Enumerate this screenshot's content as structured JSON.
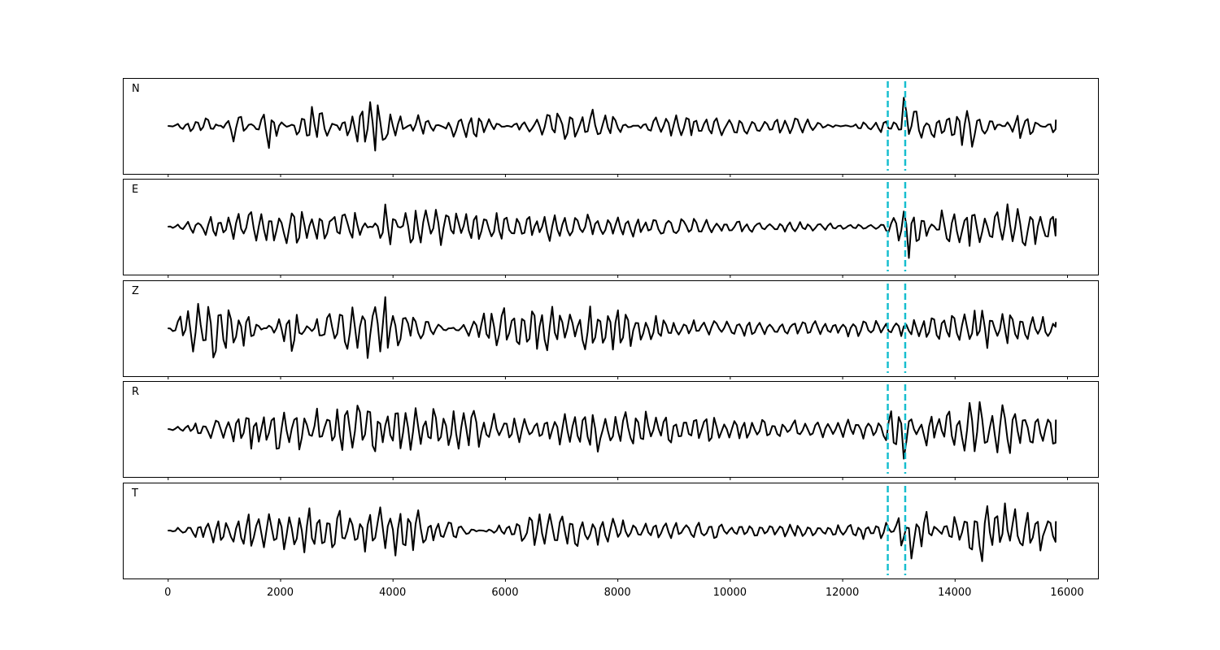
{
  "chart_data": {
    "type": "line",
    "title": "",
    "xlabel": "",
    "ylabel": "",
    "xlim": [
      -800,
      16550
    ],
    "x_ticks": [
      0,
      2000,
      4000,
      6000,
      8000,
      10000,
      12000,
      14000,
      16000
    ],
    "x_tick_labels": [
      "0",
      "2000",
      "4000",
      "6000",
      "8000",
      "10000",
      "12000",
      "14000",
      "16000"
    ],
    "shared_x": true,
    "y_ticks_visible": false,
    "grid": false,
    "marker_lines": {
      "style": "dashed",
      "color": "#17becf",
      "x": [
        12810,
        13120
      ]
    },
    "trace_color": "#000000",
    "x_range": [
      0,
      15800
    ],
    "panels": [
      {
        "label": "N",
        "ylim": [
          -1.15,
          1.15
        ],
        "anchors": [
          [
            0,
            0
          ],
          [
            700,
            0.3
          ],
          [
            1250,
            -0.5
          ],
          [
            1800,
            0.55
          ],
          [
            2600,
            -0.7
          ],
          [
            3350,
            0.65
          ],
          [
            3900,
            0.75
          ],
          [
            4500,
            -0.45
          ],
          [
            5300,
            0.55
          ],
          [
            6300,
            -0.2
          ],
          [
            7500,
            -0.5
          ],
          [
            8800,
            0.3
          ],
          [
            11300,
            0.2
          ],
          [
            12900,
            -0.25
          ],
          [
            13150,
            1.0
          ],
          [
            13300,
            -0.9
          ],
          [
            13600,
            0.3
          ],
          [
            14300,
            0.6
          ],
          [
            15200,
            -0.4
          ],
          [
            15800,
            0.3
          ]
        ]
      },
      {
        "label": "E",
        "ylim": [
          -1.15,
          1.15
        ],
        "anchors": [
          [
            0,
            0
          ],
          [
            900,
            0.35
          ],
          [
            1700,
            0.45
          ],
          [
            2400,
            0.55
          ],
          [
            3400,
            0.4
          ],
          [
            3950,
            -0.7
          ],
          [
            4300,
            0.65
          ],
          [
            5700,
            0.35
          ],
          [
            7200,
            0.35
          ],
          [
            9200,
            0.2
          ],
          [
            12700,
            0.05
          ],
          [
            13200,
            0.95
          ],
          [
            13300,
            -0.85
          ],
          [
            13800,
            0.5
          ],
          [
            15200,
            0.6
          ],
          [
            15800,
            0.4
          ]
        ]
      },
      {
        "label": "Z",
        "ylim": [
          -1.15,
          1.15
        ],
        "anchors": [
          [
            0,
            0
          ],
          [
            500,
            0.75
          ],
          [
            900,
            1.0
          ],
          [
            1300,
            0.5
          ],
          [
            2200,
            -0.6
          ],
          [
            2800,
            0.55
          ],
          [
            3900,
            0.95
          ],
          [
            4000,
            -0.75
          ],
          [
            5800,
            0.55
          ],
          [
            8000,
            0.55
          ],
          [
            9000,
            0.2
          ],
          [
            12000,
            0.2
          ],
          [
            13300,
            0.25
          ],
          [
            14400,
            0.55
          ],
          [
            15800,
            0.3
          ]
        ]
      },
      {
        "label": "R",
        "ylim": [
          -1.15,
          1.15
        ],
        "anchors": [
          [
            0,
            0
          ],
          [
            900,
            0.3
          ],
          [
            1800,
            0.6
          ],
          [
            2700,
            0.5
          ],
          [
            3900,
            0.7
          ],
          [
            5300,
            0.5
          ],
          [
            6600,
            0.3
          ],
          [
            7500,
            0.6
          ],
          [
            9300,
            0.35
          ],
          [
            11700,
            0.2
          ],
          [
            12800,
            0.3
          ],
          [
            13050,
            0.9
          ],
          [
            13100,
            -1.0
          ],
          [
            13500,
            0.5
          ],
          [
            14450,
            0.75
          ],
          [
            15800,
            0.45
          ]
        ]
      },
      {
        "label": "T",
        "ylim": [
          -1.15,
          1.15
        ],
        "anchors": [
          [
            0,
            0
          ],
          [
            700,
            0.3
          ],
          [
            2400,
            0.6
          ],
          [
            3300,
            0.5
          ],
          [
            3950,
            0.65
          ],
          [
            4000,
            -0.8
          ],
          [
            6700,
            0.55
          ],
          [
            8300,
            0.25
          ],
          [
            11800,
            0.15
          ],
          [
            12800,
            0.25
          ],
          [
            13100,
            -0.6
          ],
          [
            13250,
            1.0
          ],
          [
            13350,
            -0.9
          ],
          [
            13900,
            0.5
          ],
          [
            14400,
            0.8
          ],
          [
            15800,
            0.45
          ]
        ]
      }
    ]
  }
}
